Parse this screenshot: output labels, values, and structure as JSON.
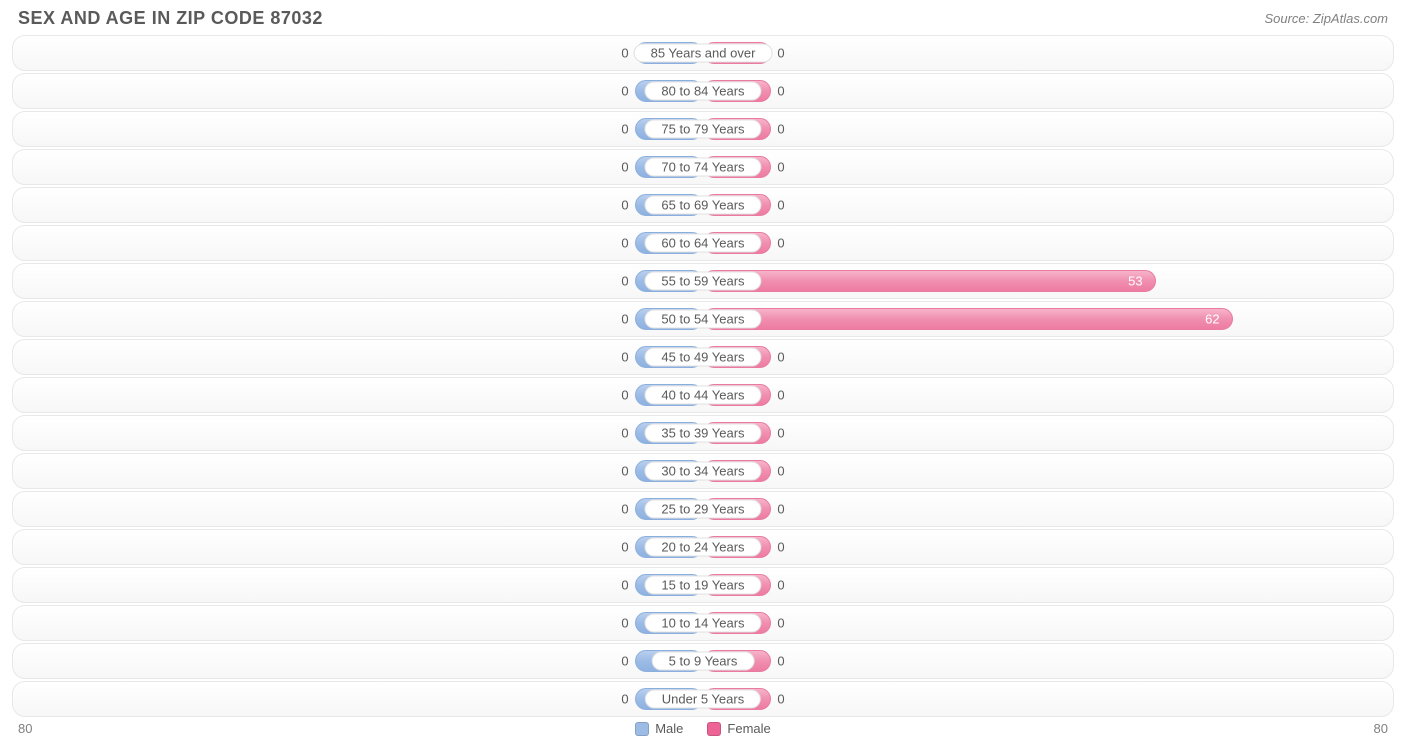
{
  "title": "SEX AND AGE IN ZIP CODE 87032",
  "source": "Source: ZipAtlas.com",
  "chart": {
    "type": "population-pyramid",
    "axis_max": 80,
    "axis_left_label": "80",
    "axis_right_label": "80",
    "min_bar_pct": 5.0,
    "colors": {
      "male_fill": "#9cbce6",
      "female_fill": "#f08fb0",
      "slot_border": "#e8e8e8",
      "text": "#5a5a5a",
      "muted_text": "#808080",
      "background": "#ffffff",
      "label_pill_bg": "#ffffff",
      "label_pill_border": "#e0e0e0"
    },
    "legend": [
      {
        "label": "Male",
        "swatch": "#9cbce6"
      },
      {
        "label": "Female",
        "swatch": "#ee6395"
      }
    ],
    "rows": [
      {
        "label": "85 Years and over",
        "male": 0,
        "female": 0
      },
      {
        "label": "80 to 84 Years",
        "male": 0,
        "female": 0
      },
      {
        "label": "75 to 79 Years",
        "male": 0,
        "female": 0
      },
      {
        "label": "70 to 74 Years",
        "male": 0,
        "female": 0
      },
      {
        "label": "65 to 69 Years",
        "male": 0,
        "female": 0
      },
      {
        "label": "60 to 64 Years",
        "male": 0,
        "female": 0
      },
      {
        "label": "55 to 59 Years",
        "male": 0,
        "female": 53
      },
      {
        "label": "50 to 54 Years",
        "male": 0,
        "female": 62
      },
      {
        "label": "45 to 49 Years",
        "male": 0,
        "female": 0
      },
      {
        "label": "40 to 44 Years",
        "male": 0,
        "female": 0
      },
      {
        "label": "35 to 39 Years",
        "male": 0,
        "female": 0
      },
      {
        "label": "30 to 34 Years",
        "male": 0,
        "female": 0
      },
      {
        "label": "25 to 29 Years",
        "male": 0,
        "female": 0
      },
      {
        "label": "20 to 24 Years",
        "male": 0,
        "female": 0
      },
      {
        "label": "15 to 19 Years",
        "male": 0,
        "female": 0
      },
      {
        "label": "10 to 14 Years",
        "male": 0,
        "female": 0
      },
      {
        "label": "5 to 9 Years",
        "male": 0,
        "female": 0
      },
      {
        "label": "Under 5 Years",
        "male": 0,
        "female": 0
      }
    ]
  }
}
